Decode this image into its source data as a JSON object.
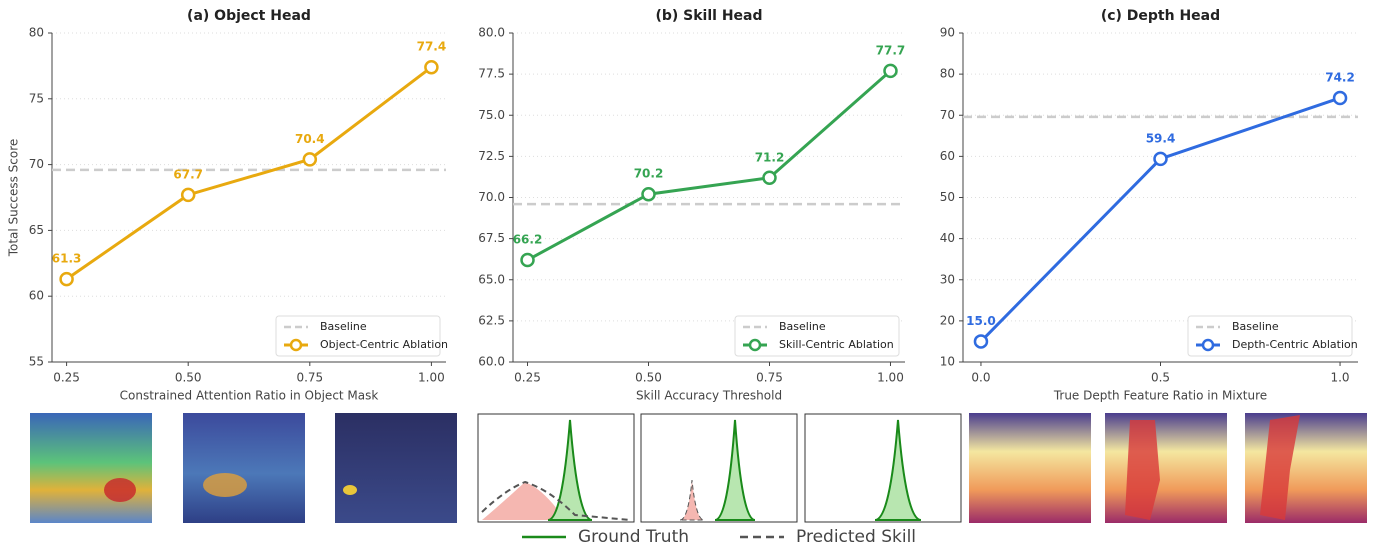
{
  "chart_data": [
    {
      "type": "line",
      "title": "(a) Object Head",
      "xlabel": "Constrained Attention Ratio in Object Mask",
      "ylabel": "Total Success Score",
      "x": [
        0.25,
        0.5,
        0.75,
        1.0
      ],
      "series": [
        {
          "name": "Object-Centric Ablation",
          "color": "#e8a90f",
          "values": [
            61.3,
            67.7,
            70.4,
            77.4
          ]
        }
      ],
      "baseline": {
        "name": "Baseline",
        "value": 69.6,
        "color": "#cccccc"
      },
      "xlim": [
        0.22,
        1.03
      ],
      "ylim": [
        55,
        80
      ],
      "xticks": [
        0.25,
        {
          "value": 0.5,
          "label": "0.50"
        },
        0.75,
        {
          "value": 1.0,
          "label": "1.00"
        }
      ],
      "yticks": [
        55,
        60,
        65,
        70,
        75,
        80
      ],
      "grid": true,
      "legend": "lower right"
    },
    {
      "type": "line",
      "title": "(b) Skill Head",
      "xlabel": "Skill Accuracy Threshold",
      "x": [
        0.25,
        0.5,
        0.75,
        1.0
      ],
      "series": [
        {
          "name": "Skill-Centric Ablation",
          "color": "#35a452",
          "values": [
            66.2,
            70.2,
            71.2,
            77.7
          ]
        }
      ],
      "baseline": {
        "name": "Baseline",
        "value": 69.6,
        "color": "#cccccc"
      },
      "xlim": [
        0.22,
        1.03
      ],
      "ylim": [
        60,
        80
      ],
      "xticks": [
        0.25,
        {
          "value": 0.5,
          "label": "0.50"
        },
        0.75,
        {
          "value": 1.0,
          "label": "1.00"
        }
      ],
      "yticks": [
        {
          "value": 60,
          "label": "60.0"
        },
        62.5,
        {
          "value": 65,
          "label": "65.0"
        },
        67.5,
        {
          "value": 70,
          "label": "70.0"
        },
        72.5,
        {
          "value": 75,
          "label": "75.0"
        },
        77.5,
        {
          "value": 80,
          "label": "80.0"
        }
      ],
      "grid": true,
      "legend": "lower right"
    },
    {
      "type": "line",
      "title": "(c) Depth Head",
      "xlabel": "True Depth Feature Ratio in Mixture",
      "x": [
        0,
        0.5,
        1.0
      ],
      "series": [
        {
          "name": "Depth-Centric Ablation",
          "color": "#2f6be0",
          "values": [
            15,
            59.4,
            74.2
          ],
          "value_labels": [
            "15.0",
            "59.4",
            "74.2"
          ]
        }
      ],
      "baseline": {
        "name": "Baseline",
        "value": 69.6,
        "color": "#cccccc"
      },
      "xlim": [
        -0.05,
        1.05
      ],
      "ylim": [
        10,
        90
      ],
      "xticks": [
        {
          "value": 0,
          "label": "0.0"
        },
        0.5,
        {
          "value": 1.0,
          "label": "1.0"
        }
      ],
      "yticks": [
        10,
        20,
        30,
        40,
        50,
        60,
        70,
        80,
        90
      ],
      "grid": true,
      "legend": "lower right"
    }
  ],
  "bottom_legend": [
    {
      "name": "Ground Truth",
      "color": "#1a8a1a"
    },
    {
      "name": "Predicted Skill",
      "color": "#555555"
    }
  ]
}
